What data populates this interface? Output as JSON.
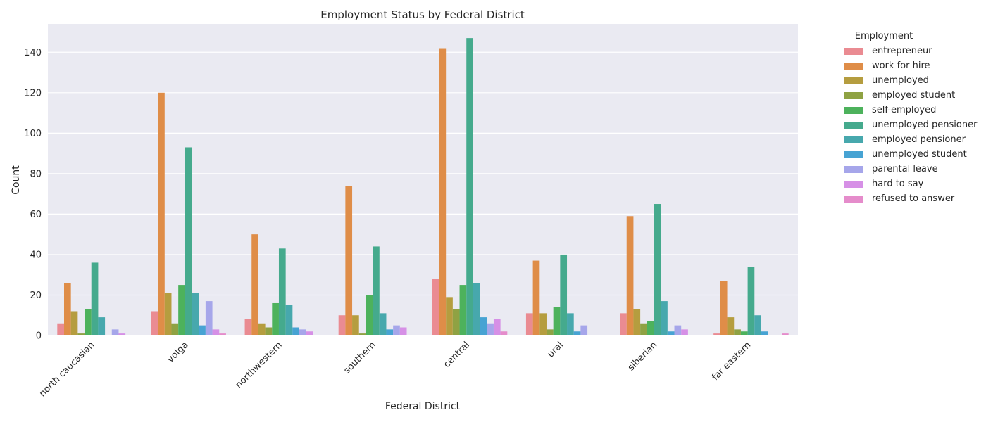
{
  "chart_data": {
    "type": "bar",
    "title": "Employment Status by Federal District",
    "xlabel": "Federal District",
    "ylabel": "Count",
    "ylim": [
      0,
      154
    ],
    "yticks": [
      0,
      20,
      40,
      60,
      80,
      100,
      120,
      140
    ],
    "grid": true,
    "legend": {
      "title": "Employment",
      "placement": "outside right"
    },
    "categories": [
      "north caucasian",
      "volga",
      "northwestern",
      "southern",
      "central",
      "ural",
      "siberian",
      "far eastern"
    ],
    "series": [
      {
        "name": "entrepreneur",
        "color": "#ea8b92",
        "values": [
          6,
          12,
          8,
          10,
          28,
          11,
          11,
          1
        ]
      },
      {
        "name": "work for hire",
        "color": "#df8d48",
        "values": [
          26,
          120,
          50,
          74,
          142,
          37,
          59,
          27
        ]
      },
      {
        "name": "unemployed",
        "color": "#b59d3f",
        "values": [
          12,
          21,
          6,
          10,
          19,
          11,
          13,
          9
        ]
      },
      {
        "name": "employed student",
        "color": "#8fa243",
        "values": [
          1,
          6,
          4,
          1,
          13,
          3,
          6,
          3
        ]
      },
      {
        "name": "self-employed",
        "color": "#4db25c",
        "values": [
          13,
          25,
          16,
          20,
          25,
          14,
          7,
          2
        ]
      },
      {
        "name": "unemployed pensioner",
        "color": "#45aa8d",
        "values": [
          36,
          93,
          43,
          44,
          147,
          40,
          65,
          34
        ]
      },
      {
        "name": "employed pensioner",
        "color": "#47a8ad",
        "values": [
          9,
          21,
          15,
          11,
          26,
          11,
          17,
          10
        ]
      },
      {
        "name": "unemployed student",
        "color": "#47a3d3",
        "values": [
          0,
          5,
          4,
          3,
          9,
          2,
          2,
          2
        ]
      },
      {
        "name": "parental leave",
        "color": "#a6a6ea",
        "values": [
          3,
          17,
          3,
          5,
          6,
          5,
          5,
          0
        ]
      },
      {
        "name": "hard to say",
        "color": "#d690e6",
        "values": [
          1,
          3,
          2,
          4,
          8,
          0,
          3,
          0
        ]
      },
      {
        "name": "refused to answer",
        "color": "#e58ccb",
        "values": [
          0,
          1,
          0,
          0,
          2,
          0,
          0,
          1
        ]
      }
    ]
  }
}
